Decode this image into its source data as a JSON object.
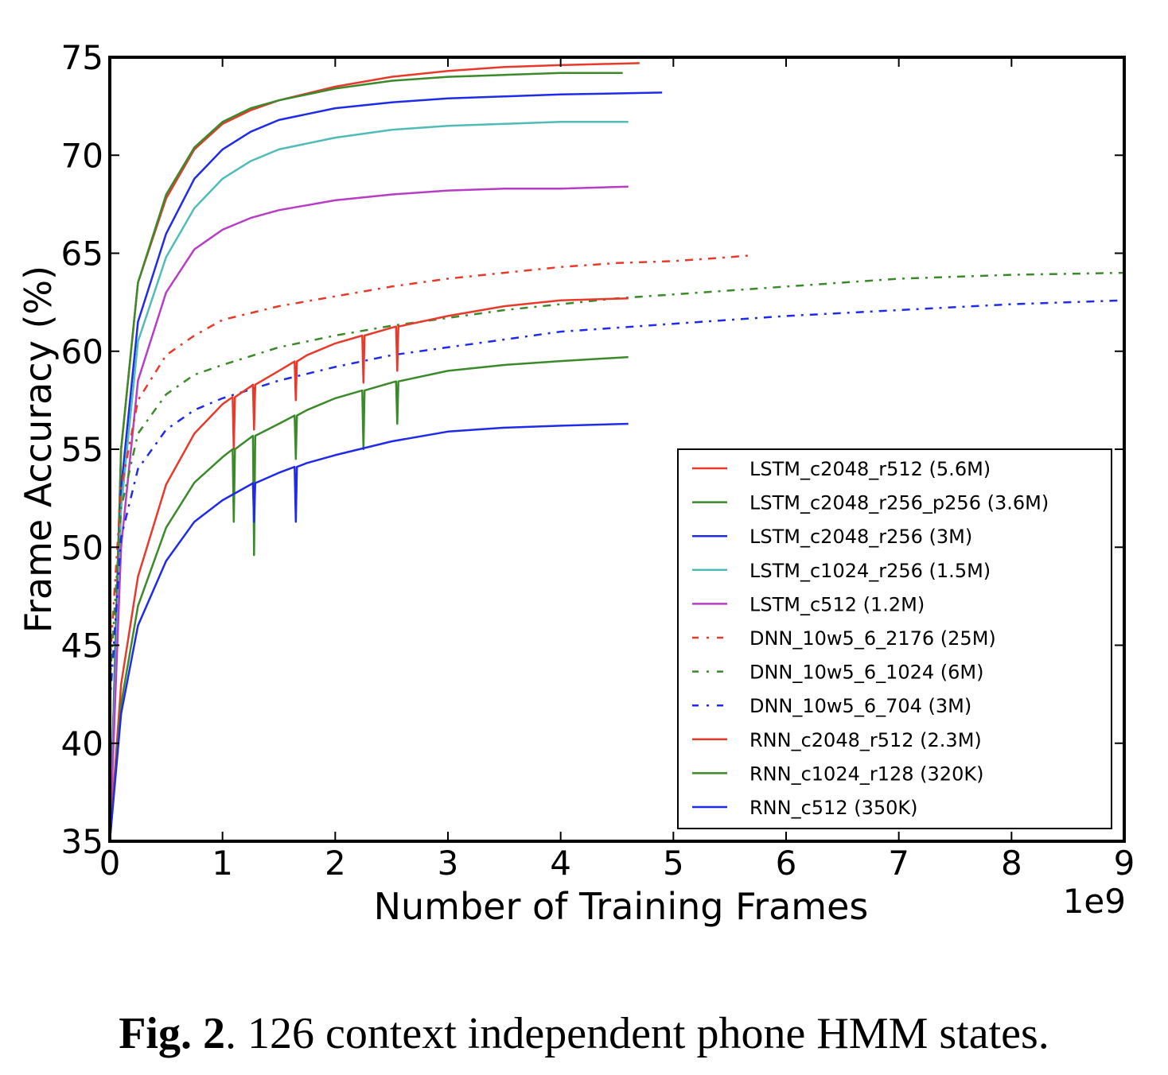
{
  "chart_data": {
    "type": "line",
    "xlabel": "Number of Training Frames",
    "ylabel": "Frame Accuracy (%)",
    "x_multiplier_label": "1e9",
    "xlim": [
      0,
      9
    ],
    "ylim": [
      35,
      75
    ],
    "x_ticks": [
      0,
      1,
      2,
      3,
      4,
      5,
      6,
      7,
      8,
      9
    ],
    "y_ticks": [
      35,
      40,
      45,
      50,
      55,
      60,
      65,
      70,
      75
    ],
    "grid": false,
    "legend_position": "lower-right",
    "series": [
      {
        "name": "LSTM_c2048_r512 (5.6M)",
        "color": "#e8392a",
        "style": "solid",
        "points": [
          [
            0,
            35
          ],
          [
            0.1,
            55
          ],
          [
            0.25,
            63.5
          ],
          [
            0.5,
            67.8
          ],
          [
            0.75,
            70.3
          ],
          [
            1,
            71.6
          ],
          [
            1.25,
            72.3
          ],
          [
            1.5,
            72.8
          ],
          [
            2,
            73.5
          ],
          [
            2.5,
            74.0
          ],
          [
            3,
            74.3
          ],
          [
            3.5,
            74.5
          ],
          [
            4,
            74.6
          ],
          [
            4.7,
            74.7
          ]
        ]
      },
      {
        "name": "LSTM_c2048_r256_p256 (3.6M)",
        "color": "#3b8a2a",
        "style": "solid",
        "points": [
          [
            0,
            35
          ],
          [
            0.1,
            55
          ],
          [
            0.25,
            63.5
          ],
          [
            0.5,
            68.0
          ],
          [
            0.75,
            70.4
          ],
          [
            1,
            71.7
          ],
          [
            1.25,
            72.4
          ],
          [
            1.5,
            72.8
          ],
          [
            2,
            73.4
          ],
          [
            2.5,
            73.8
          ],
          [
            3,
            74.0
          ],
          [
            3.5,
            74.1
          ],
          [
            4,
            74.2
          ],
          [
            4.55,
            74.2
          ]
        ]
      },
      {
        "name": "LSTM_c2048_r256 (3M)",
        "color": "#1f2be8",
        "style": "solid",
        "points": [
          [
            0,
            35
          ],
          [
            0.1,
            53
          ],
          [
            0.25,
            61.5
          ],
          [
            0.5,
            66.0
          ],
          [
            0.75,
            68.8
          ],
          [
            1,
            70.3
          ],
          [
            1.25,
            71.2
          ],
          [
            1.5,
            71.8
          ],
          [
            2,
            72.4
          ],
          [
            2.5,
            72.7
          ],
          [
            3,
            72.9
          ],
          [
            3.5,
            73.0
          ],
          [
            4,
            73.1
          ],
          [
            4.9,
            73.2
          ]
        ]
      },
      {
        "name": "LSTM_c1024_r256 (1.5M)",
        "color": "#4fbcb8",
        "style": "solid",
        "points": [
          [
            0,
            35
          ],
          [
            0.1,
            52
          ],
          [
            0.25,
            60.5
          ],
          [
            0.5,
            64.8
          ],
          [
            0.75,
            67.3
          ],
          [
            1,
            68.8
          ],
          [
            1.25,
            69.7
          ],
          [
            1.5,
            70.3
          ],
          [
            2,
            70.9
          ],
          [
            2.5,
            71.3
          ],
          [
            3,
            71.5
          ],
          [
            3.5,
            71.6
          ],
          [
            4,
            71.7
          ],
          [
            4.6,
            71.7
          ]
        ]
      },
      {
        "name": "LSTM_c512 (1.2M)",
        "color": "#b73ec4",
        "style": "solid",
        "points": [
          [
            0,
            35
          ],
          [
            0.1,
            50
          ],
          [
            0.25,
            58.5
          ],
          [
            0.5,
            63.0
          ],
          [
            0.75,
            65.2
          ],
          [
            1,
            66.2
          ],
          [
            1.25,
            66.8
          ],
          [
            1.5,
            67.2
          ],
          [
            2,
            67.7
          ],
          [
            2.5,
            68.0
          ],
          [
            3,
            68.2
          ],
          [
            3.5,
            68.3
          ],
          [
            4,
            68.3
          ],
          [
            4.6,
            68.4
          ]
        ]
      },
      {
        "name": "DNN_10w5_6_2176 (25M)",
        "color": "#e8392a",
        "style": "dashdot",
        "points": [
          [
            0,
            44
          ],
          [
            0.1,
            53
          ],
          [
            0.25,
            57.5
          ],
          [
            0.5,
            59.8
          ],
          [
            0.75,
            60.8
          ],
          [
            1,
            61.6
          ],
          [
            1.5,
            62.3
          ],
          [
            2,
            62.8
          ],
          [
            2.5,
            63.3
          ],
          [
            3,
            63.7
          ],
          [
            3.5,
            64.0
          ],
          [
            4,
            64.3
          ],
          [
            4.5,
            64.5
          ],
          [
            5,
            64.6
          ],
          [
            5.5,
            64.8
          ],
          [
            5.7,
            64.9
          ]
        ]
      },
      {
        "name": "DNN_10w5_6_1024 (6M)",
        "color": "#3b8a2a",
        "style": "dashdot",
        "points": [
          [
            0,
            43
          ],
          [
            0.1,
            52
          ],
          [
            0.25,
            55.8
          ],
          [
            0.5,
            57.8
          ],
          [
            0.75,
            58.8
          ],
          [
            1,
            59.3
          ],
          [
            1.5,
            60.2
          ],
          [
            2,
            60.8
          ],
          [
            2.5,
            61.3
          ],
          [
            3,
            61.7
          ],
          [
            3.5,
            62.1
          ],
          [
            4,
            62.4
          ],
          [
            4.5,
            62.7
          ],
          [
            5,
            62.9
          ],
          [
            6,
            63.3
          ],
          [
            7,
            63.7
          ],
          [
            8,
            63.9
          ],
          [
            9,
            64.0
          ]
        ]
      },
      {
        "name": "DNN_10w5_6_704 (3M)",
        "color": "#1f2be8",
        "style": "dashdot",
        "points": [
          [
            0,
            42
          ],
          [
            0.1,
            50.5
          ],
          [
            0.25,
            54.0
          ],
          [
            0.5,
            56.0
          ],
          [
            0.75,
            57.0
          ],
          [
            1,
            57.6
          ],
          [
            1.5,
            58.5
          ],
          [
            2,
            59.2
          ],
          [
            2.5,
            59.8
          ],
          [
            3,
            60.2
          ],
          [
            3.5,
            60.6
          ],
          [
            4,
            61.0
          ],
          [
            4.5,
            61.2
          ],
          [
            5,
            61.4
          ],
          [
            6,
            61.8
          ],
          [
            7,
            62.1
          ],
          [
            8,
            62.4
          ],
          [
            9,
            62.6
          ]
        ]
      },
      {
        "name": "RNN_c2048_r512 (2.3M)",
        "color": "#e8392a",
        "style": "solid",
        "points": [
          [
            0,
            35
          ],
          [
            0.1,
            43
          ],
          [
            0.25,
            48.5
          ],
          [
            0.5,
            53.2
          ],
          [
            0.75,
            55.8
          ],
          [
            1,
            57.3
          ],
          [
            1.25,
            58.2
          ],
          [
            1.5,
            59.0
          ],
          [
            1.75,
            59.8
          ],
          [
            2,
            60.4
          ],
          [
            2.5,
            61.2
          ],
          [
            3,
            61.8
          ],
          [
            3.5,
            62.3
          ],
          [
            4,
            62.6
          ],
          [
            4.6,
            62.7
          ]
        ]
      },
      {
        "name": "RNN_c1024_r128 (320K)",
        "color": "#3b8a2a",
        "style": "solid",
        "points": [
          [
            0,
            35
          ],
          [
            0.1,
            42
          ],
          [
            0.25,
            47.0
          ],
          [
            0.5,
            51.0
          ],
          [
            0.75,
            53.3
          ],
          [
            1,
            54.6
          ],
          [
            1.25,
            55.6
          ],
          [
            1.5,
            56.3
          ],
          [
            1.75,
            57.0
          ],
          [
            2,
            57.6
          ],
          [
            2.5,
            58.4
          ],
          [
            3,
            59.0
          ],
          [
            3.5,
            59.3
          ],
          [
            4,
            59.5
          ],
          [
            4.6,
            59.7
          ]
        ]
      },
      {
        "name": "RNN_c512 (350K)",
        "color": "#1f2be8",
        "style": "solid",
        "points": [
          [
            0,
            35
          ],
          [
            0.1,
            41.5
          ],
          [
            0.25,
            46.0
          ],
          [
            0.5,
            49.3
          ],
          [
            0.75,
            51.3
          ],
          [
            1,
            52.4
          ],
          [
            1.25,
            53.2
          ],
          [
            1.5,
            53.8
          ],
          [
            1.75,
            54.3
          ],
          [
            2,
            54.7
          ],
          [
            2.5,
            55.4
          ],
          [
            3,
            55.9
          ],
          [
            3.5,
            56.1
          ],
          [
            4,
            56.2
          ],
          [
            4.6,
            56.3
          ]
        ]
      }
    ],
    "spikes": [
      {
        "series": 8,
        "x": 1.1,
        "min": 55.0
      },
      {
        "series": 8,
        "x": 1.28,
        "min": 56.0
      },
      {
        "series": 8,
        "x": 1.65,
        "min": 57.5
      },
      {
        "series": 8,
        "x": 2.25,
        "min": 58.4
      },
      {
        "series": 8,
        "x": 2.55,
        "min": 59.0
      },
      {
        "series": 9,
        "x": 1.1,
        "min": 51.3
      },
      {
        "series": 9,
        "x": 1.28,
        "min": 49.6
      },
      {
        "series": 9,
        "x": 1.65,
        "min": 54.5
      },
      {
        "series": 9,
        "x": 2.25,
        "min": 55.0
      },
      {
        "series": 9,
        "x": 2.55,
        "min": 56.3
      },
      {
        "series": 10,
        "x": 1.28,
        "min": 51.3
      },
      {
        "series": 10,
        "x": 1.65,
        "min": 51.3
      }
    ]
  },
  "caption": {
    "label": "Fig. 2",
    "text": ". 126 context independent phone HMM states."
  }
}
